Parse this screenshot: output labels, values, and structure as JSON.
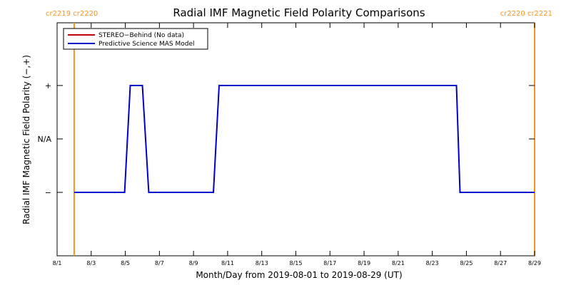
{
  "chart_data": {
    "type": "line",
    "title": "Radial IMF Magnetic Field Polarity Comparisons",
    "xlabel": "Month/Day from 2019-08-01 to 2019-08-29 (UT)",
    "ylabel": "Radial IMF Magnetic Field Polarity (−,+)",
    "xlim": [
      "2019-08-01",
      "2019-08-29"
    ],
    "x_ticks": [
      "8/1",
      "8/3",
      "8/5",
      "8/7",
      "8/9",
      "8/11",
      "8/13",
      "8/15",
      "8/17",
      "8/19",
      "8/21",
      "8/23",
      "8/25",
      "8/27",
      "8/29"
    ],
    "y_ticks": [
      "+",
      "N/A",
      "−"
    ],
    "grid": false,
    "legend": {
      "position": "top-left",
      "entries": [
        {
          "label": "STEREO−Behind (No data)",
          "color": "#c00000"
        },
        {
          "label": "Predictive Science MAS Model",
          "color": "#0000cc"
        }
      ]
    },
    "carrington_markers": [
      {
        "date": "2019-08-02",
        "label": "cr2219 cr2220",
        "color": "#f7941d"
      },
      {
        "date": "2019-08-29",
        "label": "cr2220 cr2221",
        "color": "#f7941d"
      }
    ],
    "series": [
      {
        "name": "Predictive Science MAS Model",
        "color": "#0000cc",
        "points": [
          {
            "x": "2019-08-02 00:00",
            "y": "−"
          },
          {
            "x": "2019-08-04 23:00",
            "y": "−"
          },
          {
            "x": "2019-08-05 07:00",
            "y": "+"
          },
          {
            "x": "2019-08-06 00:00",
            "y": "+"
          },
          {
            "x": "2019-08-06 09:00",
            "y": "−"
          },
          {
            "x": "2019-08-10 04:00",
            "y": "−"
          },
          {
            "x": "2019-08-10 12:00",
            "y": "+"
          },
          {
            "x": "2019-08-24 10:00",
            "y": "+"
          },
          {
            "x": "2019-08-24 15:00",
            "y": "−"
          },
          {
            "x": "2019-08-29 00:00",
            "y": "−"
          }
        ]
      }
    ]
  }
}
